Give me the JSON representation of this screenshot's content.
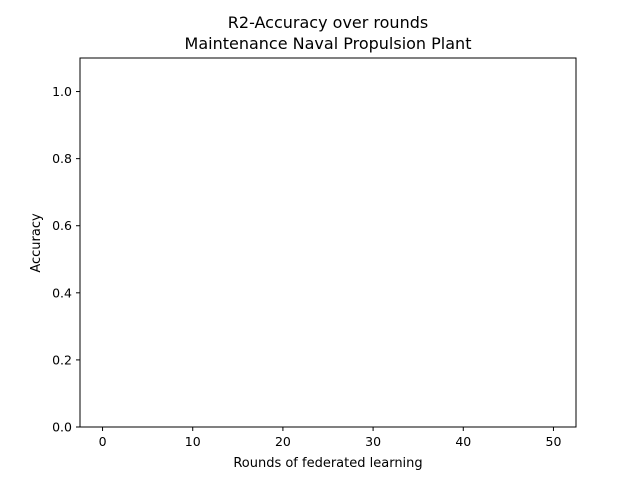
{
  "chart_data": {
    "type": "line",
    "title": "R2-Accuracy over rounds",
    "subtitle": "Maintenance Naval Propulsion Plant",
    "xlabel": "Rounds of federated learning",
    "ylabel": "Accuracy",
    "xlim": [
      -2.5,
      52.5
    ],
    "ylim": [
      0,
      1.1
    ],
    "xticks": [
      0,
      10,
      20,
      30,
      40,
      50
    ],
    "xtick_labels": [
      "0",
      "10",
      "20",
      "30",
      "40",
      "50"
    ],
    "yticks": [
      0.0,
      0.2,
      0.4,
      0.6,
      0.8,
      1.0
    ],
    "ytick_labels": [
      "0.0",
      "0.2",
      "0.4",
      "0.6",
      "0.8",
      "1.0"
    ],
    "grid": false,
    "series": []
  }
}
